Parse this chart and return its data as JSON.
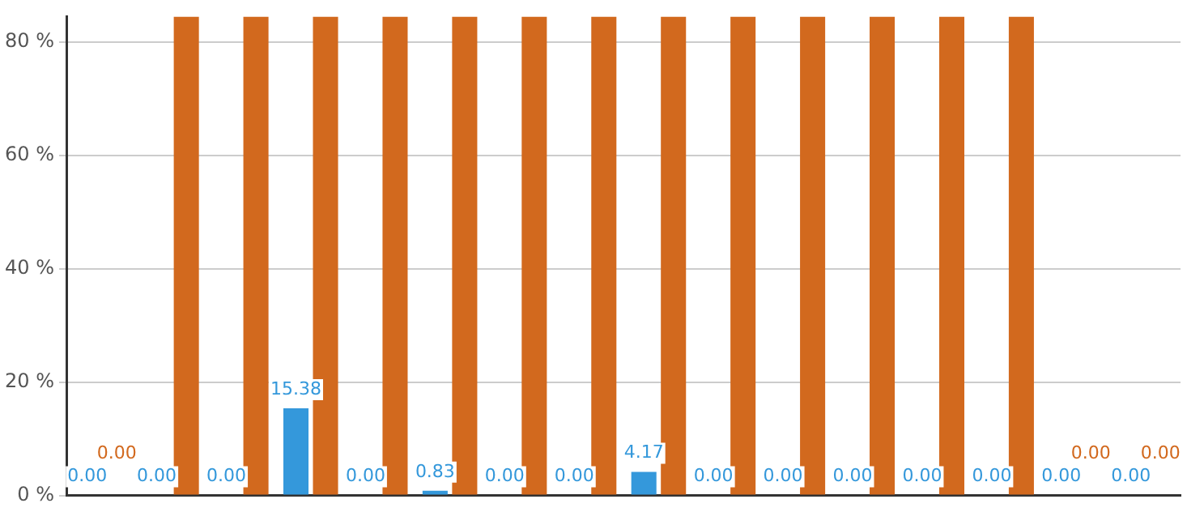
{
  "chart_data": {
    "type": "bar",
    "categories": [
      null,
      null,
      null,
      null,
      null,
      null,
      null,
      null,
      null,
      null,
      null,
      null,
      null,
      null,
      null,
      null
    ],
    "series": [
      {
        "color": "#3498db",
        "values": [
          0,
          0,
          0,
          15.38,
          0,
          0.83,
          0,
          0,
          4.17,
          0,
          0,
          0,
          0,
          0,
          0,
          0
        ],
        "value_labels": [
          "0.00",
          "0.00",
          "0.00",
          "15.38",
          "0.00",
          "0.83",
          "0.00",
          "0.00",
          "4.17",
          "0.00",
          "0.00",
          "0.00",
          "0.00",
          "0.00",
          "0.00",
          "0.00"
        ]
      },
      {
        "color": "#d2691e",
        "values": [
          0,
          84.5,
          84.5,
          84.5,
          84.5,
          84.5,
          84.5,
          84.5,
          84.5,
          84.5,
          84.5,
          84.5,
          84.5,
          84.5,
          0,
          0
        ],
        "value_labels": [
          "0.00",
          null,
          null,
          null,
          null,
          null,
          null,
          null,
          null,
          null,
          null,
          null,
          null,
          null,
          "0.00",
          "0.00"
        ]
      }
    ],
    "ylim": [
      0,
      84.5
    ],
    "yticks": [
      {
        "value": 0,
        "label": "0 %"
      },
      {
        "value": 20,
        "label": "20 %"
      },
      {
        "value": 40,
        "label": "40 %"
      },
      {
        "value": 60,
        "label": "60 %"
      },
      {
        "value": 80,
        "label": "80 %"
      }
    ],
    "grid": "y",
    "legend": false
  }
}
